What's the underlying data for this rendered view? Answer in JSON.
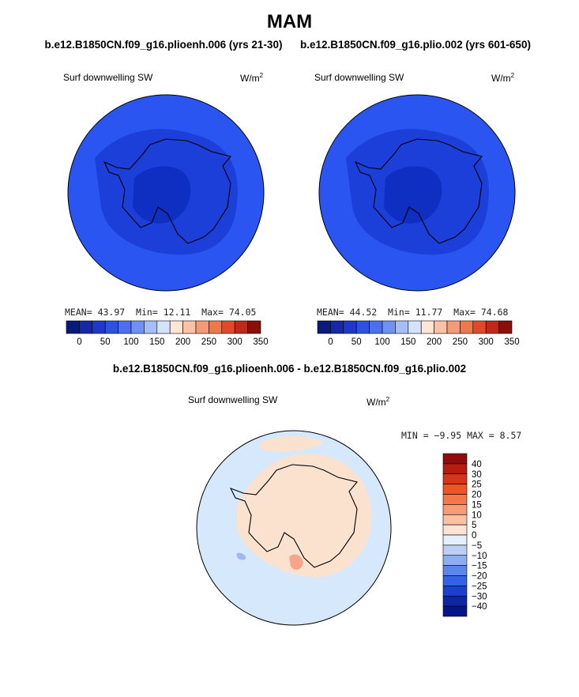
{
  "title": "MAM",
  "colors": {
    "ocean_left": "#2a55f0",
    "ocean_right": "#2a55f0",
    "inner_band": "#1b3fd8",
    "plateau": "#0f2ec2",
    "diff_bg": "#d6e8fb",
    "diff_pos": "#fbe2cf",
    "diff_pos_strong": "#f4a68a",
    "diff_neg": "#9db8f2",
    "coast": "#000000"
  },
  "panels": [
    {
      "case": "b.e12.B1850CN.f09_g16.plioenh.006 (yrs 21-30)",
      "field": "Surf downwelling SW",
      "units": "W/m",
      "units_sup": "2",
      "mean_label": "MEAN=",
      "mean": "43.97",
      "min_label": "Min=",
      "min": "12.11",
      "max_label": "Max=",
      "max": "74.05"
    },
    {
      "case": "b.e12.B1850CN.f09_g16.plio.002 (yrs 601-650)",
      "field": "Surf downwelling SW",
      "units": "W/m",
      "units_sup": "2",
      "mean_label": "MEAN=",
      "mean": "44.52",
      "min_label": "Min=",
      "min": "11.77",
      "max_label": "Max=",
      "max": "74.68"
    }
  ],
  "difference": {
    "title": "b.e12.B1850CN.f09_g16.plioenh.006 - b.e12.B1850CN.f09_g16.plio.002",
    "field": "Surf downwelling SW",
    "units": "W/m",
    "units_sup": "2",
    "stats": "MIN =  −9.95 MAX =   8.57"
  },
  "chart_data": [
    {
      "type": "heatmap",
      "projection": "south-polar-stereographic",
      "title": "b.e12.B1850CN.f09_g16.plioenh.006 (yrs 21-30)",
      "variable": "Surf downwelling SW",
      "units": "W/m2",
      "stats": {
        "mean": 43.97,
        "min": 12.11,
        "max": 74.05
      },
      "colorbar": {
        "orientation": "horizontal",
        "tick_labels": [
          "0",
          "50",
          "100",
          "150",
          "200",
          "250",
          "300",
          "350"
        ],
        "colors": [
          "#0a1a7a",
          "#1428a8",
          "#2038c8",
          "#2e52e0",
          "#4a6ff0",
          "#6f90f5",
          "#a6bef7",
          "#d4e2fb",
          "#fde6d6",
          "#f8c2a6",
          "#f49a76",
          "#f0764c",
          "#e04a2a",
          "#c0281a",
          "#8a0e0a"
        ]
      }
    },
    {
      "type": "heatmap",
      "projection": "south-polar-stereographic",
      "title": "b.e12.B1850CN.f09_g16.plio.002 (yrs 601-650)",
      "variable": "Surf downwelling SW",
      "units": "W/m2",
      "stats": {
        "mean": 44.52,
        "min": 11.77,
        "max": 74.68
      },
      "colorbar": {
        "orientation": "horizontal",
        "tick_labels": [
          "0",
          "50",
          "100",
          "150",
          "200",
          "250",
          "300",
          "350"
        ],
        "colors": [
          "#0a1a7a",
          "#1428a8",
          "#2038c8",
          "#2e52e0",
          "#4a6ff0",
          "#6f90f5",
          "#a6bef7",
          "#d4e2fb",
          "#fde6d6",
          "#f8c2a6",
          "#f49a76",
          "#f0764c",
          "#e04a2a",
          "#c0281a",
          "#8a0e0a"
        ]
      }
    },
    {
      "type": "heatmap",
      "projection": "south-polar-stereographic",
      "title": "b.e12.B1850CN.f09_g16.plioenh.006 - b.e12.B1850CN.f09_g16.plio.002",
      "variable": "Surf downwelling SW",
      "units": "W/m2",
      "stats": {
        "min": -9.95,
        "max": 8.57
      },
      "colorbar": {
        "orientation": "vertical",
        "tick_labels": [
          "40",
          "30",
          "25",
          "20",
          "15",
          "10",
          "5",
          "0",
          "−5",
          "−10",
          "−15",
          "−20",
          "−25",
          "−30",
          "−40"
        ],
        "colors": [
          "#8e0c0c",
          "#b81c10",
          "#d8341a",
          "#f05426",
          "#f6784a",
          "#f89c76",
          "#fbc1a4",
          "#fde4d2",
          "#e6f0fb",
          "#bcd0f7",
          "#8eaef3",
          "#5c86ed",
          "#3462e4",
          "#1a40cc",
          "#0c26a8",
          "#06148a"
        ]
      }
    }
  ]
}
